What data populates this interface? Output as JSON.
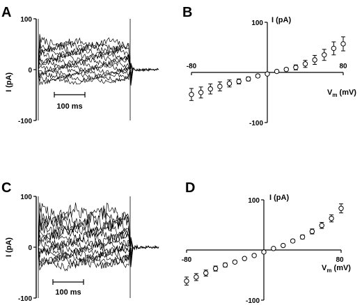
{
  "panels": {
    "A": {
      "letter": "A",
      "ylabel": "I (pA)",
      "y_ticks": [
        "100",
        "0",
        "-100"
      ],
      "scalebar": "100 ms"
    },
    "B": {
      "letter": "B",
      "ylabel": "I (pA)",
      "xlabel_main": "V",
      "xlabel_sub": "m",
      "xlabel_unit": " (mV)",
      "y_ticks": [
        "100",
        "-100"
      ],
      "x_ticks": [
        "-80",
        "80"
      ]
    },
    "C": {
      "letter": "C",
      "ylabel": "I (pA)",
      "y_ticks": [
        "100",
        "0",
        "-100"
      ],
      "scalebar": "100 ms"
    },
    "D": {
      "letter": "D",
      "ylabel": "I (pA)",
      "xlabel_main": "V",
      "xlabel_sub": "m",
      "xlabel_unit": " (mV)",
      "y_ticks": [
        "100",
        "-100"
      ],
      "x_ticks": [
        "-80",
        "80"
      ]
    }
  },
  "chart_data": [
    {
      "panel": "A",
      "type": "line",
      "ylabel": "I (pA)",
      "ylim": [
        -100,
        100
      ],
      "scalebar": "100 ms",
      "trace_levels_pA": [
        52,
        46,
        40,
        34,
        28,
        22,
        16,
        10,
        4,
        -2,
        -7,
        -12,
        -17,
        -22
      ]
    },
    {
      "panel": "B",
      "type": "scatter",
      "xlabel": "Vm (mV)",
      "ylabel": "I (pA)",
      "xlim": [
        -80,
        80
      ],
      "ylim": [
        -100,
        100
      ],
      "x": [
        -80,
        -70,
        -60,
        -50,
        -40,
        -30,
        -20,
        -10,
        0,
        10,
        20,
        30,
        40,
        50,
        60,
        70,
        80
      ],
      "y": [
        -44,
        -40,
        -33,
        -28,
        -22,
        -18,
        -13,
        -7,
        -3,
        2,
        6,
        10,
        17,
        25,
        35,
        48,
        57
      ],
      "error": [
        12,
        11,
        10,
        9,
        7,
        5,
        4,
        3,
        2,
        2,
        3,
        5,
        7,
        9,
        11,
        13,
        14
      ]
    },
    {
      "panel": "C",
      "type": "line",
      "ylabel": "I (pA)",
      "ylim": [
        -100,
        100
      ],
      "scalebar": "100 ms",
      "trace_levels_pA": [
        65,
        57,
        49,
        41,
        33,
        25,
        18,
        11,
        4,
        -3,
        -9,
        -15,
        -21,
        -27,
        -33
      ]
    },
    {
      "panel": "D",
      "type": "scatter",
      "xlabel": "Vm (mV)",
      "ylabel": "I (pA)",
      "xlim": [
        -80,
        80
      ],
      "ylim": [
        -100,
        100
      ],
      "x": [
        -80,
        -70,
        -60,
        -50,
        -40,
        -30,
        -20,
        -10,
        0,
        10,
        20,
        30,
        40,
        50,
        60,
        70,
        80
      ],
      "y": [
        -62,
        -54,
        -46,
        -37,
        -30,
        -24,
        -17,
        -11,
        -4,
        3,
        9,
        18,
        26,
        37,
        49,
        63,
        83
      ],
      "error": [
        8,
        7,
        6,
        5,
        4,
        3,
        2,
        2,
        1,
        2,
        2,
        3,
        4,
        5,
        6,
        7,
        9
      ]
    }
  ]
}
